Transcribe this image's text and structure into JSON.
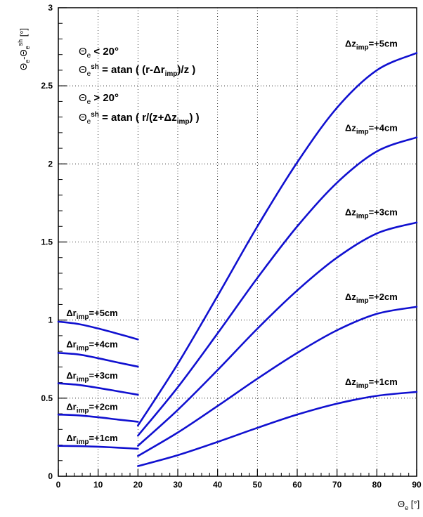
{
  "chart_data": {
    "type": "line",
    "xlim": [
      0,
      90
    ],
    "ylim": [
      0,
      3
    ],
    "x_ticks": [
      0,
      10,
      20,
      30,
      40,
      50,
      60,
      70,
      80,
      90
    ],
    "y_ticks": [
      0,
      0.5,
      1,
      1.5,
      2,
      2.5,
      3
    ],
    "x_tick_labels": [
      "0",
      "10",
      "20",
      "30",
      "40",
      "50",
      "60",
      "70",
      "80",
      "90"
    ],
    "y_tick_labels": [
      "0",
      "0.5",
      "1",
      "1.5",
      "2",
      "2.5",
      "3"
    ],
    "grid": true,
    "line_color": "#1010d0",
    "xlabel": {
      "sym": "Θ",
      "sub": "e",
      "unit": " [°]"
    },
    "ylabel": {
      "sym1": "Θ",
      "sub1": "e",
      "sep": "-Θ",
      "sub2": "e",
      "sup2": "sh",
      "unit": " [°]"
    },
    "annotations": {
      "lt_label": {
        "theta": "Θ",
        "e": "e",
        "rest": " < 20°"
      },
      "formula1": {
        "theta": "Θ",
        "e": "e",
        "sh": "sh",
        "rest1": " = atan ( (r-Δr",
        "imp": "imp",
        "rest2": ")/z )"
      },
      "gt_label": {
        "theta": "Θ",
        "e": "e",
        "rest": " > 20°"
      },
      "formula2": {
        "theta": "Θ",
        "e": "e",
        "sh": "sh",
        "rest1": " = atan ( r/(z+Δz",
        "imp": "imp",
        "rest2": ") )"
      }
    },
    "series": [
      {
        "name": "Δr_imp=+1cm",
        "pre": "Δr",
        "sub": "imp",
        "post": "=+1cm",
        "label_at": [
          2,
          0.225
        ],
        "x": [
          0,
          5,
          10,
          15,
          20
        ],
        "y": [
          0.195,
          0.193,
          0.189,
          0.183,
          0.176
        ]
      },
      {
        "name": "Δr_imp=+2cm",
        "pre": "Δr",
        "sub": "imp",
        "post": "=+2cm",
        "label_at": [
          2,
          0.425
        ],
        "x": [
          0,
          5,
          10,
          15,
          20
        ],
        "y": [
          0.395,
          0.39,
          0.378,
          0.363,
          0.349
        ]
      },
      {
        "name": "Δr_imp=+3cm",
        "pre": "Δr",
        "sub": "imp",
        "post": "=+3cm",
        "label_at": [
          2,
          0.625
        ],
        "x": [
          0,
          5,
          10,
          15,
          20
        ],
        "y": [
          0.595,
          0.585,
          0.566,
          0.544,
          0.522
        ]
      },
      {
        "name": "Δr_imp=+4cm",
        "pre": "Δr",
        "sub": "imp",
        "post": "=+4cm",
        "label_at": [
          2,
          0.825
        ],
        "x": [
          0,
          5,
          10,
          15,
          20
        ],
        "y": [
          0.79,
          0.78,
          0.756,
          0.728,
          0.702
        ]
      },
      {
        "name": "Δr_imp=+5cm",
        "pre": "Δr",
        "sub": "imp",
        "post": "=+5cm",
        "label_at": [
          2,
          1.025
        ],
        "x": [
          0,
          5,
          10,
          15,
          20
        ],
        "y": [
          0.99,
          0.975,
          0.946,
          0.912,
          0.876
        ]
      },
      {
        "name": "Δz_imp=+1cm",
        "pre": "Δz",
        "sub": "imp",
        "post": "=+1cm",
        "label_at": [
          72,
          0.585
        ],
        "x": [
          20,
          30,
          40,
          50,
          60,
          70,
          80,
          90
        ],
        "y": [
          0.065,
          0.135,
          0.22,
          0.31,
          0.395,
          0.465,
          0.515,
          0.54
        ]
      },
      {
        "name": "Δz_imp=+2cm",
        "pre": "Δz",
        "sub": "imp",
        "post": "=+2cm",
        "label_at": [
          72,
          1.13
        ],
        "x": [
          20,
          30,
          40,
          50,
          60,
          70,
          80,
          90
        ],
        "y": [
          0.13,
          0.28,
          0.45,
          0.625,
          0.79,
          0.935,
          1.04,
          1.085
        ]
      },
      {
        "name": "Δz_imp=+3cm",
        "pre": "Δz",
        "sub": "imp",
        "post": "=+3cm",
        "label_at": [
          72,
          1.67
        ],
        "x": [
          20,
          30,
          40,
          50,
          60,
          70,
          80,
          90
        ],
        "y": [
          0.195,
          0.425,
          0.68,
          0.945,
          1.19,
          1.4,
          1.555,
          1.625
        ]
      },
      {
        "name": "Δz_imp=+4cm",
        "pre": "Δz",
        "sub": "imp",
        "post": "=+4cm",
        "label_at": [
          72,
          2.21
        ],
        "x": [
          20,
          30,
          40,
          50,
          60,
          70,
          80,
          90
        ],
        "y": [
          0.26,
          0.57,
          0.915,
          1.27,
          1.6,
          1.88,
          2.08,
          2.17
        ]
      },
      {
        "name": "Δz_imp=+5cm",
        "pre": "Δz",
        "sub": "imp",
        "post": "=+5cm",
        "label_at": [
          72,
          2.75
        ],
        "x": [
          20,
          30,
          40,
          50,
          60,
          70,
          80,
          90
        ],
        "y": [
          0.325,
          0.72,
          1.155,
          1.6,
          2.01,
          2.36,
          2.6,
          2.71
        ]
      }
    ]
  }
}
